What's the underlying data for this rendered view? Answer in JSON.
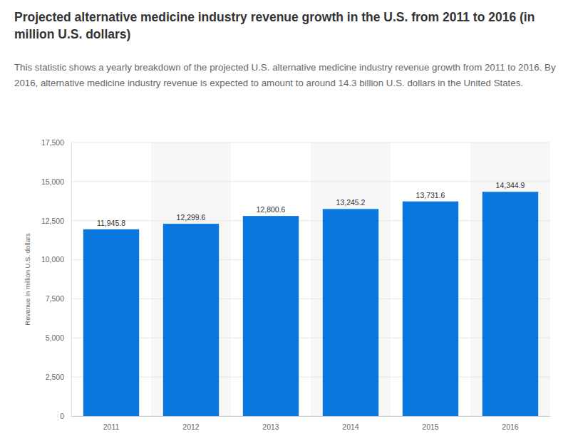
{
  "chart_data": {
    "type": "bar",
    "title": "Projected alternative medicine industry revenue growth in the U.S. from 2011 to 2016 (in million U.S. dollars)",
    "subtitle": "This statistic shows a yearly breakdown of the projected U.S. alternative medicine industry revenue growth from 2011 to 2016. By 2016, alternative medicine industry revenue is expected to amount to around 14.3 billion U.S. dollars in the United States.",
    "y_label": "Revenue in million U.S. dollars",
    "categories": [
      "2011",
      "2012",
      "2013",
      "2014",
      "2015",
      "2016"
    ],
    "values": [
      11945.8,
      12299.6,
      12800.6,
      13245.2,
      13731.6,
      14344.9
    ],
    "value_labels": [
      "11,945.8",
      "12,299.6",
      "12,800.6",
      "13,245.2",
      "13,731.6",
      "14,344.9"
    ],
    "color": "#0a77df",
    "ylim": [
      0,
      17500
    ],
    "yticks": [
      0,
      {
        "value": 2500,
        "label": "2,500"
      },
      {
        "value": 5000,
        "label": "5,000"
      },
      {
        "value": 7500,
        "label": "7,500"
      },
      {
        "value": 10000,
        "label": "10,000"
      },
      {
        "value": 12500,
        "label": "12,500"
      },
      {
        "value": 15000,
        "label": "15,000"
      },
      {
        "value": 17500,
        "label": "17,500"
      }
    ],
    "grid": true,
    "data_labels": true
  }
}
